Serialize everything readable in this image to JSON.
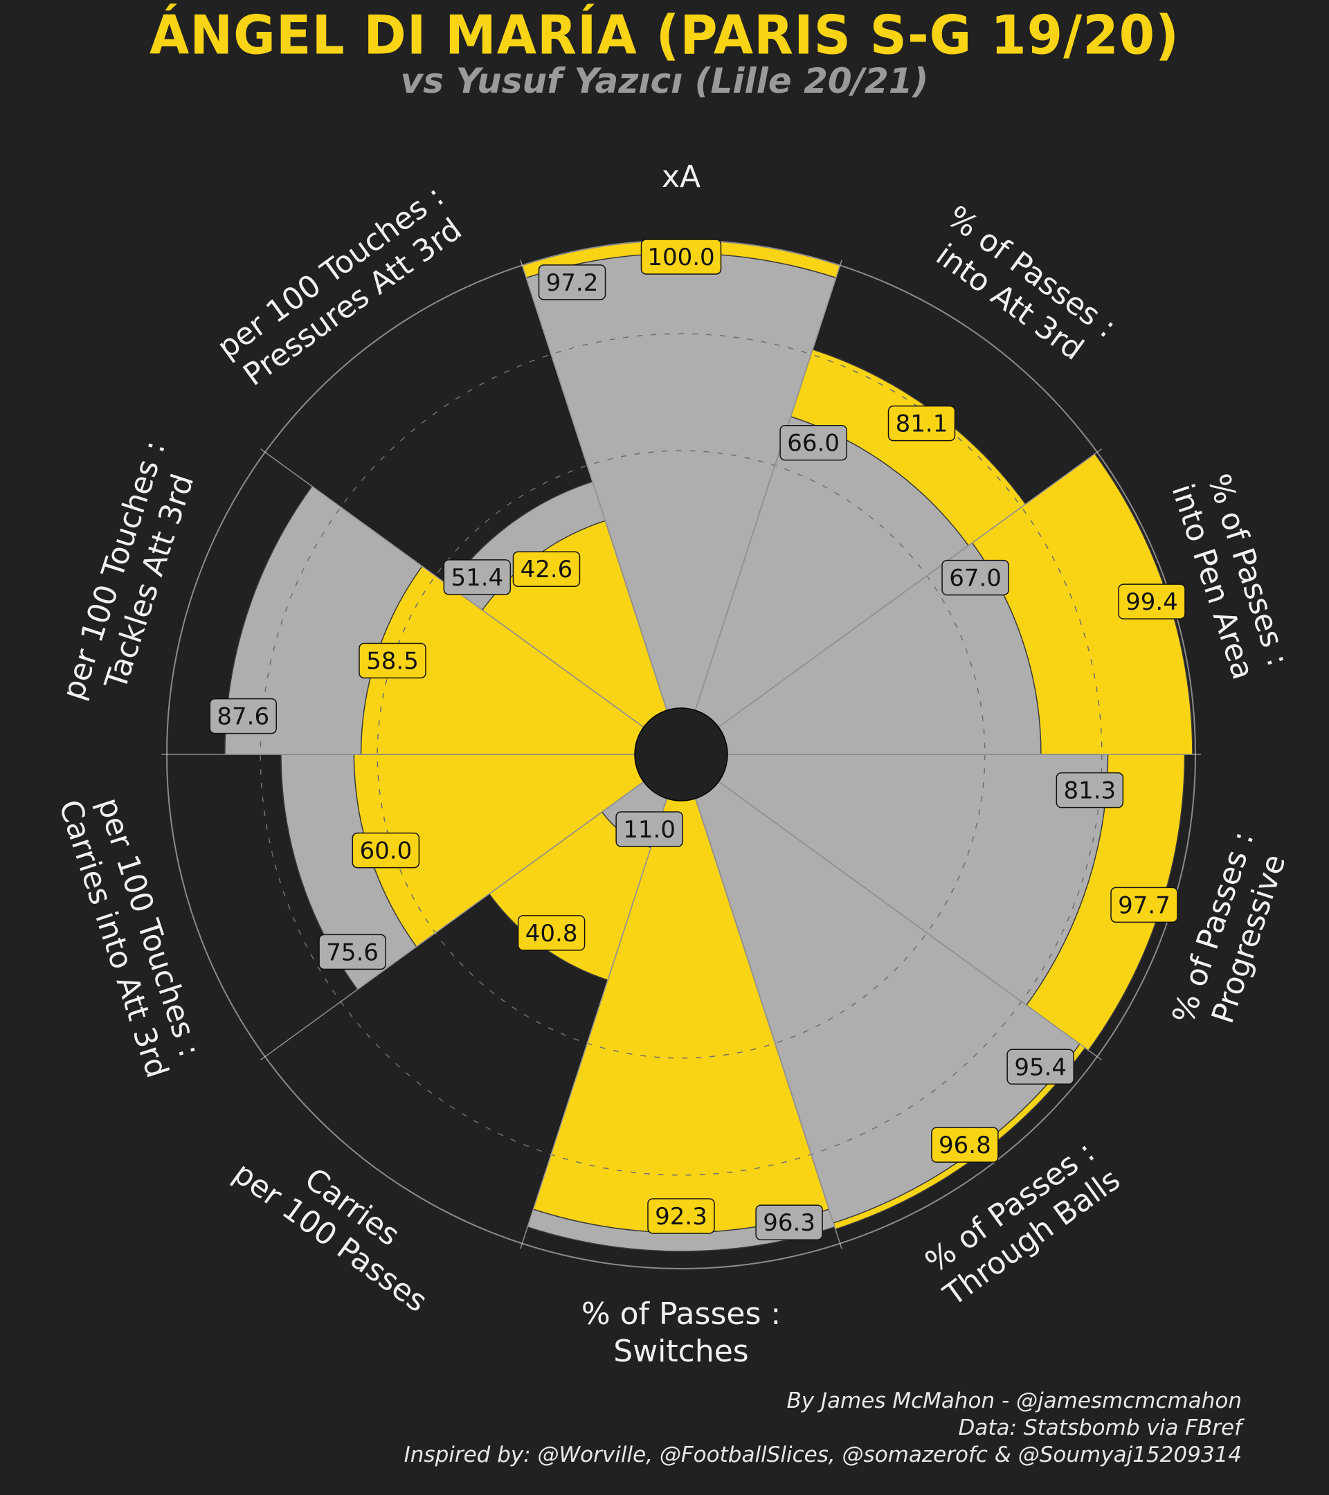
{
  "header": {
    "title": "ÁNGEL DI MARÍA (PARIS S-G 19/20)",
    "subtitle": "vs Yusuf Yazıcı (Lille 20/21)"
  },
  "colors": {
    "background": "#212121",
    "player": "#f9d414",
    "comparison": "#aeaeae"
  },
  "credits": [
    "By James McMahon - @jamesmcmcmahon",
    "Data: Statsbomb via FBref",
    "Inspired by: @Worville, @FootballSlices, @somazerofc & @Soumyaj15209314"
  ],
  "chart_data": {
    "type": "radial-bar",
    "title": "ÁNGEL DI MARÍA (PARIS S-G 19/20)",
    "subtitle": "vs Yusuf Yazıcı (Lille 20/21)",
    "range": [
      0,
      100
    ],
    "grid": true,
    "categories": [
      [
        "xA"
      ],
      [
        "% of Passes :",
        "into Att 3rd"
      ],
      [
        "% of Passes :",
        "into Pen Area"
      ],
      [
        "% of Passes :",
        "Progressive"
      ],
      [
        "% of Passes :",
        "Through Balls"
      ],
      [
        "% of Passes :",
        "Switches"
      ],
      [
        "Carries",
        "per 100 Passes"
      ],
      [
        "per 100 Touches :",
        "Carries into Att 3rd"
      ],
      [
        "per 100 Touches :",
        "Tackles Att 3rd"
      ],
      [
        "per 100 Touches :",
        "Pressures Att 3rd"
      ]
    ],
    "series": [
      {
        "values": [
          100.0,
          81.1,
          99.4,
          97.7,
          96.8,
          92.3,
          40.8,
          60.0,
          58.5,
          42.6
        ]
      },
      {
        "values": [
          97.2,
          66.0,
          67.0,
          81.3,
          95.4,
          96.3,
          11.0,
          75.6,
          87.6,
          51.4
        ]
      }
    ]
  }
}
